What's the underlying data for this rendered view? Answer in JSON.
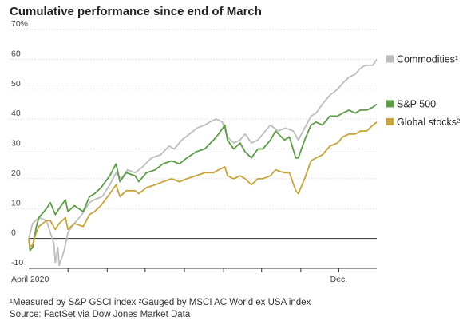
{
  "chart_data": {
    "type": "line",
    "title": "Cumulative performance since end of March",
    "y_unit_label": "70%",
    "ylim": [
      -10,
      70
    ],
    "yticks": [
      -10,
      0,
      10,
      20,
      30,
      40,
      50,
      60,
      70
    ],
    "ytick_labels": [
      "-10",
      "0",
      "10",
      "20",
      "30",
      "40",
      "50",
      "60",
      "70%"
    ],
    "xlim": [
      "2020-03-31",
      "2020-12-31"
    ],
    "xtick_labels": [
      "April 2020",
      "Dec."
    ],
    "xtick_label_dates": [
      "2020-04-01",
      "2020-12-01"
    ],
    "grid": true,
    "legend": "right",
    "series": [
      {
        "name": "Commodities",
        "marker": "¹",
        "color": "#bdbdbd",
        "points": [
          [
            "2020-03-31",
            0
          ],
          [
            "2020-04-03",
            5
          ],
          [
            "2020-04-08",
            7
          ],
          [
            "2020-04-14",
            6
          ],
          [
            "2020-04-20",
            -2
          ],
          [
            "2020-04-21",
            -8
          ],
          [
            "2020-04-23",
            -3
          ],
          [
            "2020-04-24",
            -9
          ],
          [
            "2020-04-28",
            -4
          ],
          [
            "2020-05-01",
            2
          ],
          [
            "2020-05-06",
            5
          ],
          [
            "2020-05-12",
            8
          ],
          [
            "2020-05-18",
            12
          ],
          [
            "2020-05-22",
            13
          ],
          [
            "2020-05-28",
            14
          ],
          [
            "2020-06-03",
            18
          ],
          [
            "2020-06-08",
            22
          ],
          [
            "2020-06-12",
            20
          ],
          [
            "2020-06-17",
            23
          ],
          [
            "2020-06-23",
            22
          ],
          [
            "2020-06-29",
            24
          ],
          [
            "2020-07-06",
            27
          ],
          [
            "2020-07-13",
            28
          ],
          [
            "2020-07-20",
            31
          ],
          [
            "2020-07-24",
            30
          ],
          [
            "2020-07-30",
            33
          ],
          [
            "2020-08-05",
            35
          ],
          [
            "2020-08-11",
            37
          ],
          [
            "2020-08-17",
            38
          ],
          [
            "2020-08-21",
            39
          ],
          [
            "2020-08-26",
            40
          ],
          [
            "2020-08-31",
            39
          ],
          [
            "2020-09-04",
            34
          ],
          [
            "2020-09-09",
            32
          ],
          [
            "2020-09-14",
            33
          ],
          [
            "2020-09-18",
            35
          ],
          [
            "2020-09-23",
            32
          ],
          [
            "2020-09-28",
            33
          ],
          [
            "2020-10-02",
            35
          ],
          [
            "2020-10-08",
            38
          ],
          [
            "2020-10-14",
            36
          ],
          [
            "2020-10-20",
            37
          ],
          [
            "2020-10-26",
            36
          ],
          [
            "2020-10-30",
            33
          ],
          [
            "2020-11-04",
            37
          ],
          [
            "2020-11-09",
            41
          ],
          [
            "2020-11-13",
            42
          ],
          [
            "2020-11-18",
            45
          ],
          [
            "2020-11-24",
            48
          ],
          [
            "2020-11-30",
            50
          ],
          [
            "2020-12-04",
            52
          ],
          [
            "2020-12-09",
            54
          ],
          [
            "2020-12-14",
            55
          ],
          [
            "2020-12-18",
            57
          ],
          [
            "2020-12-22",
            58
          ],
          [
            "2020-12-28",
            58
          ],
          [
            "2020-12-31",
            60
          ]
        ]
      },
      {
        "name": "S&P 500",
        "marker": "",
        "color": "#5b9e46",
        "points": [
          [
            "2020-03-31",
            0
          ],
          [
            "2020-04-01",
            -4
          ],
          [
            "2020-04-03",
            -3
          ],
          [
            "2020-04-06",
            4
          ],
          [
            "2020-04-08",
            7
          ],
          [
            "2020-04-14",
            10
          ],
          [
            "2020-04-17",
            12
          ],
          [
            "2020-04-21",
            8
          ],
          [
            "2020-04-24",
            10
          ],
          [
            "2020-04-29",
            13
          ],
          [
            "2020-05-01",
            9
          ],
          [
            "2020-05-06",
            11
          ],
          [
            "2020-05-13",
            9
          ],
          [
            "2020-05-18",
            14
          ],
          [
            "2020-05-22",
            15
          ],
          [
            "2020-05-27",
            17
          ],
          [
            "2020-06-03",
            21
          ],
          [
            "2020-06-08",
            25
          ],
          [
            "2020-06-11",
            19
          ],
          [
            "2020-06-16",
            22
          ],
          [
            "2020-06-23",
            21
          ],
          [
            "2020-06-26",
            19
          ],
          [
            "2020-07-02",
            22
          ],
          [
            "2020-07-09",
            23
          ],
          [
            "2020-07-15",
            25
          ],
          [
            "2020-07-22",
            26
          ],
          [
            "2020-07-28",
            25
          ],
          [
            "2020-08-03",
            27
          ],
          [
            "2020-08-10",
            29
          ],
          [
            "2020-08-17",
            30
          ],
          [
            "2020-08-24",
            33
          ],
          [
            "2020-08-28",
            35
          ],
          [
            "2020-09-02",
            38
          ],
          [
            "2020-09-04",
            33
          ],
          [
            "2020-09-09",
            30
          ],
          [
            "2020-09-14",
            32
          ],
          [
            "2020-09-18",
            29
          ],
          [
            "2020-09-23",
            27
          ],
          [
            "2020-09-28",
            30
          ],
          [
            "2020-10-02",
            30
          ],
          [
            "2020-10-08",
            33
          ],
          [
            "2020-10-12",
            36
          ],
          [
            "2020-10-19",
            33
          ],
          [
            "2020-10-23",
            34
          ],
          [
            "2020-10-28",
            27
          ],
          [
            "2020-10-30",
            27
          ],
          [
            "2020-11-04",
            33
          ],
          [
            "2020-11-09",
            38
          ],
          [
            "2020-11-13",
            39
          ],
          [
            "2020-11-18",
            38
          ],
          [
            "2020-11-24",
            41
          ],
          [
            "2020-11-30",
            41
          ],
          [
            "2020-12-04",
            42
          ],
          [
            "2020-12-09",
            43
          ],
          [
            "2020-12-14",
            42
          ],
          [
            "2020-12-18",
            43
          ],
          [
            "2020-12-23",
            43
          ],
          [
            "2020-12-28",
            44
          ],
          [
            "2020-12-31",
            45
          ]
        ]
      },
      {
        "name": "Global stocks",
        "marker": "²",
        "color": "#c8a43a",
        "points": [
          [
            "2020-03-31",
            0
          ],
          [
            "2020-04-01",
            -3
          ],
          [
            "2020-04-03",
            -2
          ],
          [
            "2020-04-06",
            2
          ],
          [
            "2020-04-08",
            4
          ],
          [
            "2020-04-14",
            6
          ],
          [
            "2020-04-17",
            6
          ],
          [
            "2020-04-21",
            3
          ],
          [
            "2020-04-24",
            5
          ],
          [
            "2020-04-29",
            7
          ],
          [
            "2020-05-01",
            3
          ],
          [
            "2020-05-06",
            5
          ],
          [
            "2020-05-13",
            4
          ],
          [
            "2020-05-18",
            8
          ],
          [
            "2020-05-22",
            9
          ],
          [
            "2020-05-27",
            11
          ],
          [
            "2020-06-03",
            15
          ],
          [
            "2020-06-08",
            18
          ],
          [
            "2020-06-11",
            14
          ],
          [
            "2020-06-16",
            16
          ],
          [
            "2020-06-23",
            16
          ],
          [
            "2020-06-26",
            15
          ],
          [
            "2020-07-02",
            17
          ],
          [
            "2020-07-09",
            18
          ],
          [
            "2020-07-15",
            19
          ],
          [
            "2020-07-22",
            20
          ],
          [
            "2020-07-28",
            19
          ],
          [
            "2020-08-03",
            20
          ],
          [
            "2020-08-10",
            21
          ],
          [
            "2020-08-17",
            22
          ],
          [
            "2020-08-24",
            22
          ],
          [
            "2020-08-28",
            23
          ],
          [
            "2020-09-02",
            24
          ],
          [
            "2020-09-04",
            21
          ],
          [
            "2020-09-09",
            20
          ],
          [
            "2020-09-14",
            21
          ],
          [
            "2020-09-18",
            20
          ],
          [
            "2020-09-23",
            18
          ],
          [
            "2020-09-28",
            20
          ],
          [
            "2020-10-02",
            20
          ],
          [
            "2020-10-08",
            21
          ],
          [
            "2020-10-12",
            23
          ],
          [
            "2020-10-19",
            22
          ],
          [
            "2020-10-23",
            22
          ],
          [
            "2020-10-28",
            16
          ],
          [
            "2020-10-30",
            15
          ],
          [
            "2020-11-04",
            20
          ],
          [
            "2020-11-09",
            26
          ],
          [
            "2020-11-13",
            27
          ],
          [
            "2020-11-18",
            28
          ],
          [
            "2020-11-24",
            31
          ],
          [
            "2020-11-30",
            32
          ],
          [
            "2020-12-04",
            34
          ],
          [
            "2020-12-09",
            35
          ],
          [
            "2020-12-14",
            35
          ],
          [
            "2020-12-18",
            36
          ],
          [
            "2020-12-23",
            36
          ],
          [
            "2020-12-28",
            38
          ],
          [
            "2020-12-31",
            39
          ]
        ]
      }
    ],
    "footnotes": [
      "¹Measured by S&P GSCI index ²Gauged by MSCI AC World ex USA index",
      "Source: FactSet via Dow Jones Market Data"
    ]
  }
}
